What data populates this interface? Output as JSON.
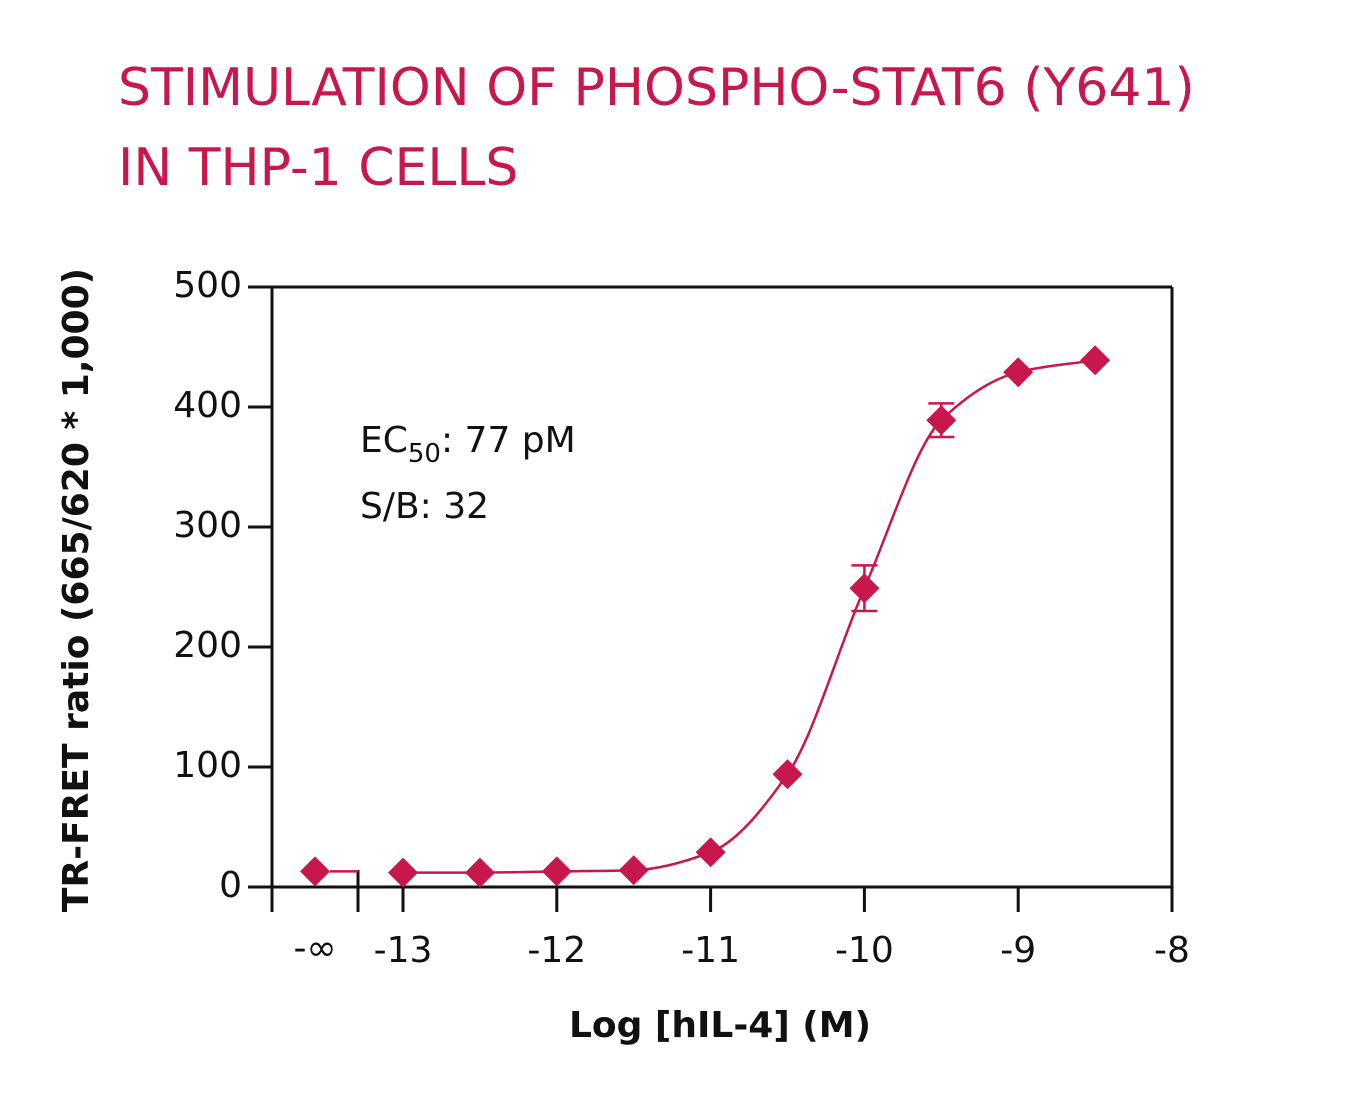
{
  "chart_data": {
    "type": "dose-response",
    "title_lines": [
      "STIMULATION OF PHOSPHO-STAT6 (Y641)",
      "IN THP-1 CELLS"
    ],
    "x_label": "Log [hIL-4] (M)",
    "y_label": "TR-FRET ratio (665/620 * 1,000)",
    "color": "#c8174d",
    "zero_dose": {
      "label": "-∞",
      "value": 13
    },
    "x": [
      -13,
      -12.5,
      -12,
      -11.5,
      -11,
      -10.5,
      -10,
      -9.5,
      -9,
      -8.5
    ],
    "values": [
      12,
      12,
      13,
      14,
      29,
      94,
      249,
      389,
      429,
      439
    ],
    "errors": [
      0,
      0,
      0,
      0,
      0,
      0,
      19,
      14,
      0,
      0
    ],
    "xlim": [
      -13,
      -8
    ],
    "xticks": [
      -13,
      -12,
      -11,
      -10,
      -9,
      -8
    ],
    "ylim": [
      0,
      500
    ],
    "yticks": [
      0,
      100,
      200,
      300,
      400,
      500
    ],
    "annotations": {
      "ec50": {
        "main": "EC",
        "sub": "50",
        "rest": ": 77 pM"
      },
      "sb": "S/B: 32"
    }
  }
}
